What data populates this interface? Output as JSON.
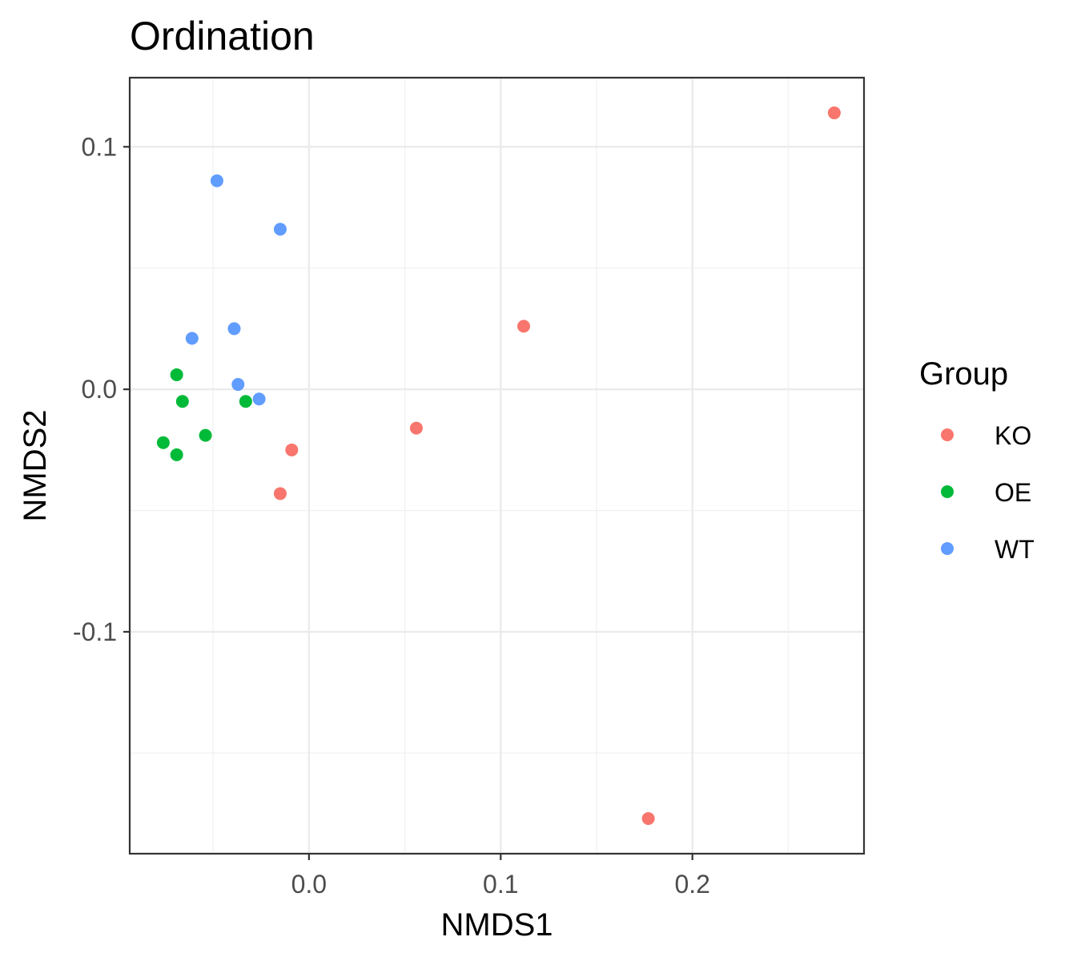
{
  "chart_data": {
    "type": "scatter",
    "title": "Ordination",
    "xlabel": "NMDS1",
    "ylabel": "NMDS2",
    "xlim": [
      -0.0935,
      0.2895
    ],
    "ylim": [
      -0.1915,
      0.1285
    ],
    "x_ticks": [
      0.0,
      0.1,
      0.2
    ],
    "x_tick_labels": [
      "0.0",
      "0.1",
      "0.2"
    ],
    "y_ticks": [
      -0.1,
      0.0,
      0.1
    ],
    "y_tick_labels": [
      "-0.1",
      "0.0",
      "0.1"
    ],
    "grid": true,
    "legend": {
      "title": "Group",
      "position": "right"
    },
    "series": [
      {
        "name": "KO",
        "color": "#F8766D",
        "points": [
          {
            "x": 0.274,
            "y": 0.114
          },
          {
            "x": 0.112,
            "y": 0.026
          },
          {
            "x": 0.056,
            "y": -0.016
          },
          {
            "x": -0.009,
            "y": -0.025
          },
          {
            "x": -0.015,
            "y": -0.043
          },
          {
            "x": 0.177,
            "y": -0.177
          }
        ]
      },
      {
        "name": "OE",
        "color": "#00BA38",
        "points": [
          {
            "x": -0.069,
            "y": 0.006
          },
          {
            "x": -0.066,
            "y": -0.005
          },
          {
            "x": -0.033,
            "y": -0.005
          },
          {
            "x": -0.054,
            "y": -0.019
          },
          {
            "x": -0.076,
            "y": -0.022
          },
          {
            "x": -0.069,
            "y": -0.027
          }
        ]
      },
      {
        "name": "WT",
        "color": "#619CFF",
        "points": [
          {
            "x": -0.048,
            "y": 0.086
          },
          {
            "x": -0.015,
            "y": 0.066
          },
          {
            "x": -0.039,
            "y": 0.025
          },
          {
            "x": -0.061,
            "y": 0.021
          },
          {
            "x": -0.037,
            "y": 0.002
          },
          {
            "x": -0.026,
            "y": -0.004
          }
        ]
      }
    ]
  }
}
